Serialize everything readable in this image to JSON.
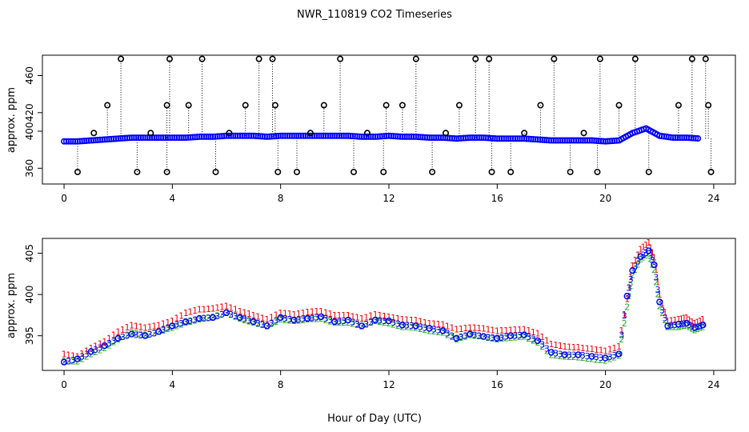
{
  "title": "NWR_110819  CO2 Timeseries",
  "xlabel_bottom": "Hour of Day (UTC)",
  "colors": {
    "frame": "#000000",
    "main_points": "#0000ff",
    "alt_points_green": "#22aa22",
    "alt_points_red": "#ee0000",
    "spike": "#000000",
    "cyan_highlight": "#00cccc"
  },
  "chart_data": [
    {
      "type": "scatter",
      "title": "NWR_110819  CO2 Timeseries",
      "xlabel": "",
      "ylabel": "approx. ppm",
      "xlim": [
        -0.8,
        24.8
      ],
      "ylim": [
        343,
        482
      ],
      "xticks": [
        0,
        4,
        8,
        12,
        16,
        20,
        24
      ],
      "yticks": [
        360,
        400,
        420,
        460
      ],
      "ytick_labels": [
        "360",
        "400",
        "420",
        "460"
      ],
      "series": [
        {
          "name": "co2_1min",
          "marker": "circle",
          "color": "#0000ff",
          "x": [
            0.0,
            0.5,
            1.0,
            1.5,
            2.0,
            2.5,
            3.0,
            3.5,
            4.0,
            4.5,
            5.0,
            5.5,
            6.0,
            6.5,
            7.0,
            7.5,
            8.0,
            8.5,
            9.0,
            9.5,
            10.0,
            10.5,
            11.0,
            11.5,
            12.0,
            12.5,
            13.0,
            13.5,
            14.0,
            14.5,
            15.0,
            15.5,
            16.0,
            16.5,
            17.0,
            17.5,
            18.0,
            18.5,
            19.0,
            19.5,
            20.0,
            20.5,
            21.0,
            21.5,
            22.0,
            22.5,
            23.0,
            23.5
          ],
          "y": [
            389,
            389,
            390,
            391,
            392,
            393,
            393,
            393,
            393,
            393,
            394,
            394,
            395,
            395,
            395,
            394,
            395,
            395,
            395,
            395,
            395,
            395,
            394,
            394,
            395,
            394,
            394,
            393,
            393,
            392,
            393,
            393,
            392,
            392,
            392,
            391,
            390,
            390,
            390,
            390,
            389,
            390,
            398,
            403,
            395,
            393,
            393,
            392
          ]
        },
        {
          "name": "spikes",
          "marker": "open-circle",
          "color": "#000000",
          "x": [
            0.5,
            1.1,
            1.6,
            2.1,
            2.7,
            3.2,
            3.8,
            3.8,
            3.9,
            4.6,
            5.1,
            5.6,
            6.1,
            6.7,
            7.2,
            7.7,
            7.8,
            7.9,
            8.6,
            9.1,
            9.6,
            10.2,
            10.7,
            11.2,
            11.8,
            11.9,
            12.5,
            13.0,
            13.6,
            14.1,
            14.6,
            15.2,
            15.7,
            15.8,
            16.5,
            17.0,
            17.6,
            18.1,
            18.7,
            19.2,
            19.7,
            19.8,
            20.5,
            21.1,
            21.6,
            22.7,
            23.2,
            23.7,
            23.8,
            23.9
          ],
          "y": [
            356,
            398,
            428,
            478,
            356,
            398,
            356,
            428,
            478,
            428,
            478,
            356,
            398,
            428,
            478,
            478,
            428,
            356,
            356,
            398,
            428,
            478,
            356,
            398,
            356,
            428,
            428,
            478,
            356,
            398,
            428,
            478,
            478,
            356,
            356,
            398,
            428,
            478,
            356,
            398,
            356,
            478,
            428,
            478,
            356,
            428,
            478,
            478,
            428,
            356
          ]
        }
      ]
    },
    {
      "type": "scatter",
      "title": "",
      "xlabel": "Hour of Day (UTC)",
      "ylabel": "approx. ppm",
      "xlim": [
        -0.8,
        24.8
      ],
      "ylim": [
        390.8,
        406.8
      ],
      "xticks": [
        0,
        4,
        8,
        12,
        16,
        20,
        24
      ],
      "yticks": [
        395,
        400,
        405
      ],
      "series": [
        {
          "name": "level_1",
          "marker": "text-1",
          "color": "#ee0000",
          "x": [
            0.0,
            0.5,
            1.0,
            1.5,
            2.0,
            2.5,
            3.0,
            3.5,
            4.0,
            4.5,
            5.0,
            5.5,
            6.0,
            6.5,
            7.0,
            7.5,
            8.0,
            8.5,
            9.0,
            9.5,
            10.0,
            10.5,
            11.0,
            11.5,
            12.0,
            12.5,
            13.0,
            13.5,
            14.0,
            14.5,
            15.0,
            15.5,
            16.0,
            16.5,
            17.0,
            17.5,
            18.0,
            18.5,
            19.0,
            19.5,
            20.0,
            20.5,
            20.8,
            21.0,
            21.3,
            21.6,
            21.8,
            22.0,
            22.3,
            22.7,
            23.0,
            23.3,
            23.6
          ],
          "y": [
            392.8,
            392.5,
            393.5,
            394.3,
            395.5,
            396.3,
            396.0,
            396.3,
            396.8,
            397.8,
            398.2,
            398.3,
            398.6,
            398.0,
            397.5,
            397.0,
            397.8,
            397.6,
            397.9,
            398.0,
            397.5,
            397.5,
            397.1,
            397.6,
            397.3,
            397.0,
            396.9,
            396.5,
            396.4,
            395.8,
            396.0,
            395.9,
            395.6,
            395.7,
            395.8,
            395.3,
            394.0,
            393.7,
            393.6,
            393.4,
            393.2,
            393.7,
            399.5,
            403.5,
            405.5,
            406.3,
            404.5,
            400.0,
            396.8,
            397.0,
            397.2,
            396.5,
            397.0
          ]
        },
        {
          "name": "level_2",
          "marker": "text-2",
          "color": "#22aa22",
          "x": [
            0.0,
            0.5,
            1.0,
            1.5,
            2.0,
            2.5,
            3.0,
            3.5,
            4.0,
            4.5,
            5.0,
            5.5,
            6.0,
            6.5,
            7.0,
            7.5,
            8.0,
            8.5,
            9.0,
            9.5,
            10.0,
            10.5,
            11.0,
            11.5,
            12.0,
            12.5,
            13.0,
            13.5,
            14.0,
            14.5,
            15.0,
            15.5,
            16.0,
            16.5,
            17.0,
            17.5,
            18.0,
            18.5,
            19.0,
            19.5,
            20.0,
            20.5,
            20.8,
            21.0,
            21.3,
            21.6,
            21.8,
            22.0,
            22.3,
            22.7,
            23.0,
            23.3,
            23.6
          ],
          "y": [
            391.9,
            391.9,
            392.8,
            393.5,
            394.6,
            395.4,
            395.1,
            395.5,
            396.0,
            396.6,
            397.0,
            397.3,
            397.8,
            397.1,
            396.6,
            396.2,
            397.0,
            396.8,
            397.0,
            397.1,
            396.6,
            396.6,
            396.2,
            396.8,
            396.5,
            396.1,
            396.0,
            395.6,
            395.4,
            394.6,
            395.1,
            394.9,
            394.6,
            394.8,
            394.9,
            394.2,
            392.7,
            392.5,
            392.4,
            392.2,
            392.0,
            392.6,
            398.5,
            402.4,
            404.3,
            405.0,
            403.0,
            398.6,
            396.1,
            396.1,
            396.3,
            395.7,
            396.1
          ]
        },
        {
          "name": "level_3",
          "marker": "text-3",
          "color": "#0000ff",
          "x": [
            0.0,
            0.5,
            1.0,
            1.5,
            2.0,
            2.5,
            3.0,
            3.5,
            4.0,
            4.5,
            5.0,
            5.5,
            6.0,
            6.5,
            7.0,
            7.5,
            8.0,
            8.5,
            9.0,
            9.5,
            10.0,
            10.5,
            11.0,
            11.5,
            12.0,
            12.5,
            13.0,
            13.5,
            14.0,
            14.5,
            15.0,
            15.5,
            16.0,
            16.5,
            17.0,
            17.5,
            18.0,
            18.5,
            19.0,
            19.5,
            20.0,
            20.5,
            20.8,
            21.0,
            21.3,
            21.6,
            21.8,
            22.0,
            22.3,
            22.7,
            23.0,
            23.3,
            23.6
          ],
          "y": [
            391.8,
            392.2,
            393.1,
            393.8,
            394.7,
            395.2,
            395.0,
            395.5,
            396.2,
            396.7,
            397.1,
            397.2,
            397.8,
            397.2,
            396.7,
            396.2,
            397.2,
            396.9,
            397.1,
            397.3,
            396.7,
            396.9,
            396.2,
            396.9,
            396.8,
            396.3,
            396.2,
            395.9,
            395.6,
            394.7,
            395.2,
            394.9,
            394.7,
            395.0,
            395.1,
            394.4,
            393.0,
            392.7,
            392.7,
            392.5,
            392.3,
            392.8,
            399.8,
            402.9,
            404.6,
            405.3,
            403.6,
            399.1,
            396.2,
            396.4,
            396.5,
            396.0,
            396.3
          ]
        }
      ]
    }
  ]
}
